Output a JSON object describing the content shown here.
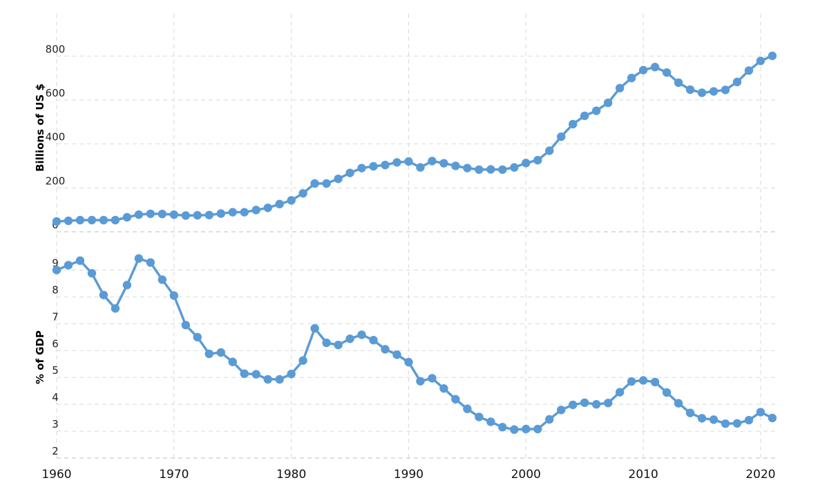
{
  "chart_data": [
    {
      "type": "line",
      "ylabel": "Billions of US $",
      "ylim": [
        0,
        800
      ],
      "yticks": [
        "0",
        "200",
        "400",
        "600",
        "800"
      ],
      "grid": true,
      "color": "#5b9bd5",
      "series": [
        {
          "x": [
            1960,
            1961,
            1962,
            1963,
            1964,
            1965,
            1966,
            1967,
            1968,
            1969,
            1970,
            1971,
            1972,
            1973,
            1974,
            1975,
            1976,
            1977,
            1978,
            1979,
            1980,
            1981,
            1982,
            1983,
            1984,
            1985,
            1986,
            1987,
            1988,
            1989,
            1990,
            1991,
            1992,
            1993,
            1994,
            1995,
            1996,
            1997,
            1998,
            1999,
            2000,
            2001,
            2002,
            2003,
            2004,
            2005,
            2006,
            2007,
            2008,
            2009,
            2010,
            2011,
            2012,
            2013,
            2014,
            2015,
            2016,
            2017,
            2018,
            2019,
            2020,
            2021
          ],
          "values": [
            47,
            50,
            53,
            53,
            53,
            53,
            66,
            78,
            82,
            81,
            78,
            74,
            75,
            76,
            83,
            89,
            89,
            99,
            109,
            126,
            143,
            175,
            220,
            220,
            241,
            268,
            290,
            298,
            304,
            316,
            320,
            293,
            322,
            312,
            300,
            290,
            283,
            284,
            283,
            293,
            313,
            326,
            369,
            433,
            490,
            528,
            551,
            587,
            654,
            700,
            736,
            750,
            725,
            679,
            647,
            633,
            639,
            646,
            682,
            734,
            778,
            801
          ]
        }
      ]
    },
    {
      "type": "line",
      "ylabel": "% of GDP",
      "ylim": [
        2,
        9.5
      ],
      "yticks": [
        "2",
        "3",
        "4",
        "5",
        "6",
        "7",
        "8",
        "9"
      ],
      "grid": true,
      "color": "#5b9bd5",
      "series": [
        {
          "x": [
            1960,
            1961,
            1962,
            1963,
            1964,
            1965,
            1966,
            1967,
            1968,
            1969,
            1970,
            1971,
            1972,
            1973,
            1974,
            1975,
            1976,
            1977,
            1978,
            1979,
            1980,
            1981,
            1982,
            1983,
            1984,
            1985,
            1986,
            1987,
            1988,
            1989,
            1990,
            1991,
            1992,
            1993,
            1994,
            1995,
            1996,
            1997,
            1998,
            1999,
            2000,
            2001,
            2002,
            2003,
            2004,
            2005,
            2006,
            2007,
            2008,
            2009,
            2010,
            2011,
            2012,
            2013,
            2014,
            2015,
            2016,
            2017,
            2018,
            2019,
            2020,
            2021
          ],
          "values": [
            9.0,
            9.18,
            9.35,
            8.88,
            8.07,
            7.57,
            8.44,
            9.43,
            9.28,
            8.64,
            8.05,
            6.95,
            6.5,
            5.88,
            5.93,
            5.58,
            5.14,
            5.12,
            4.93,
            4.93,
            5.13,
            5.63,
            6.83,
            6.29,
            6.21,
            6.44,
            6.59,
            6.39,
            6.05,
            5.85,
            5.57,
            4.86,
            4.97,
            4.59,
            4.19,
            3.83,
            3.53,
            3.35,
            3.15,
            3.06,
            3.08,
            3.08,
            3.44,
            3.79,
            3.98,
            4.06,
            4.0,
            4.05,
            4.45,
            4.85,
            4.89,
            4.83,
            4.44,
            4.04,
            3.68,
            3.48,
            3.43,
            3.28,
            3.29,
            3.41,
            3.71,
            3.49
          ]
        }
      ]
    }
  ],
  "x_axis": {
    "xlim": [
      1960,
      2022
    ],
    "ticks": [
      "1960",
      "1970",
      "1980",
      "1990",
      "2000",
      "2010",
      "2020"
    ]
  }
}
